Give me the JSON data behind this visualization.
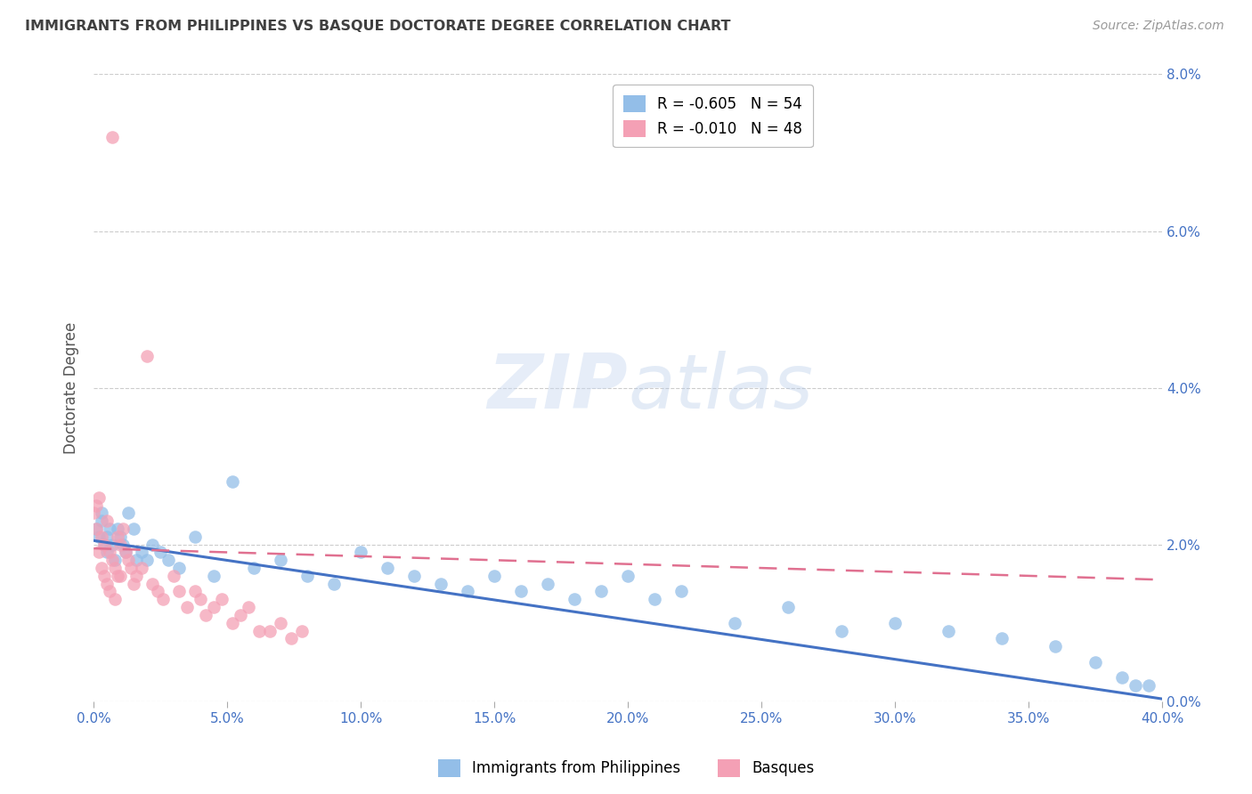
{
  "title": "IMMIGRANTS FROM PHILIPPINES VS BASQUE DOCTORATE DEGREE CORRELATION CHART",
  "source": "Source: ZipAtlas.com",
  "ylabel": "Doctorate Degree",
  "xlim": [
    0.0,
    0.4
  ],
  "ylim": [
    0.0,
    0.08
  ],
  "xticks": [
    0.0,
    0.05,
    0.1,
    0.15,
    0.2,
    0.25,
    0.3,
    0.35,
    0.4
  ],
  "yticks": [
    0.0,
    0.02,
    0.04,
    0.06,
    0.08
  ],
  "xtick_labels": [
    "0.0%",
    "5.0%",
    "10.0%",
    "15.0%",
    "20.0%",
    "25.0%",
    "30.0%",
    "35.0%",
    "40.0%"
  ],
  "ytick_labels_right": [
    "0.0%",
    "2.0%",
    "4.0%",
    "6.0%",
    "8.0%"
  ],
  "legend_r_blue": "R = -0.605",
  "legend_n_blue": "N = 54",
  "legend_r_pink": "R = -0.010",
  "legend_n_pink": "N = 48",
  "legend_label_blue": "Immigrants from Philippines",
  "legend_label_pink": "Basques",
  "watermark_zip": "ZIP",
  "watermark_atlas": "atlas",
  "blue_color": "#93bee8",
  "pink_color": "#f4a0b5",
  "blue_trend_color": "#4472c4",
  "pink_trend_color": "#e07090",
  "background_color": "#ffffff",
  "grid_color": "#cccccc",
  "title_color": "#404040",
  "axis_color": "#4472c4",
  "blue_scatter_x": [
    0.001,
    0.002,
    0.003,
    0.003,
    0.004,
    0.005,
    0.005,
    0.006,
    0.007,
    0.008,
    0.009,
    0.01,
    0.011,
    0.012,
    0.013,
    0.015,
    0.016,
    0.018,
    0.02,
    0.022,
    0.025,
    0.028,
    0.032,
    0.038,
    0.045,
    0.052,
    0.06,
    0.07,
    0.08,
    0.09,
    0.1,
    0.11,
    0.12,
    0.13,
    0.14,
    0.15,
    0.16,
    0.17,
    0.18,
    0.19,
    0.2,
    0.21,
    0.22,
    0.24,
    0.26,
    0.28,
    0.3,
    0.32,
    0.34,
    0.36,
    0.375,
    0.385,
    0.39,
    0.395
  ],
  "blue_scatter_y": [
    0.022,
    0.021,
    0.023,
    0.024,
    0.02,
    0.021,
    0.019,
    0.022,
    0.02,
    0.018,
    0.022,
    0.021,
    0.02,
    0.019,
    0.024,
    0.022,
    0.018,
    0.019,
    0.018,
    0.02,
    0.019,
    0.018,
    0.017,
    0.021,
    0.016,
    0.028,
    0.017,
    0.018,
    0.016,
    0.015,
    0.019,
    0.017,
    0.016,
    0.015,
    0.014,
    0.016,
    0.014,
    0.015,
    0.013,
    0.014,
    0.016,
    0.013,
    0.014,
    0.01,
    0.012,
    0.009,
    0.01,
    0.009,
    0.008,
    0.007,
    0.005,
    0.003,
    0.002,
    0.002
  ],
  "pink_scatter_x": [
    0.0,
    0.001,
    0.001,
    0.002,
    0.002,
    0.003,
    0.003,
    0.004,
    0.004,
    0.005,
    0.005,
    0.006,
    0.006,
    0.007,
    0.007,
    0.008,
    0.008,
    0.009,
    0.009,
    0.01,
    0.01,
    0.011,
    0.012,
    0.013,
    0.014,
    0.015,
    0.016,
    0.018,
    0.02,
    0.022,
    0.024,
    0.026,
    0.03,
    0.032,
    0.035,
    0.038,
    0.04,
    0.042,
    0.045,
    0.048,
    0.052,
    0.055,
    0.058,
    0.062,
    0.066,
    0.07,
    0.074,
    0.078
  ],
  "pink_scatter_y": [
    0.024,
    0.025,
    0.022,
    0.026,
    0.019,
    0.021,
    0.017,
    0.02,
    0.016,
    0.023,
    0.015,
    0.019,
    0.014,
    0.072,
    0.018,
    0.017,
    0.013,
    0.016,
    0.021,
    0.016,
    0.02,
    0.022,
    0.019,
    0.018,
    0.017,
    0.015,
    0.016,
    0.017,
    0.044,
    0.015,
    0.014,
    0.013,
    0.016,
    0.014,
    0.012,
    0.014,
    0.013,
    0.011,
    0.012,
    0.013,
    0.01,
    0.011,
    0.012,
    0.009,
    0.009,
    0.01,
    0.008,
    0.009
  ],
  "blue_trend_x": [
    0.0,
    0.4
  ],
  "blue_trend_y": [
    0.0205,
    0.0003
  ],
  "pink_trend_x": [
    0.0,
    0.4
  ],
  "pink_trend_y": [
    0.0195,
    0.0155
  ]
}
